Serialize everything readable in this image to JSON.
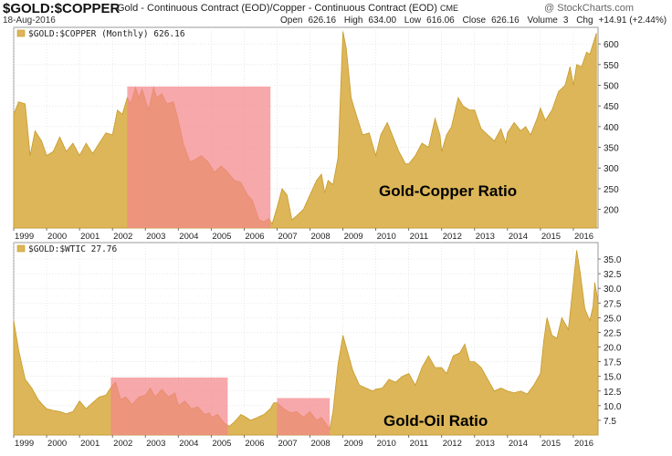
{
  "header": {
    "symbol": "$GOLD:$COPPER",
    "description": "Gold - Continuous Contract (EOD)/Copper - Continuous Contract (EOD)",
    "exchange": "CME",
    "watermark": "@ StockCharts.com",
    "date": "18-Aug-2016",
    "open_label": "Open",
    "open": "626.16",
    "high_label": "High",
    "high": "634.00",
    "low_label": "Low",
    "low": "616.06",
    "close_label": "Close",
    "close": "626.16",
    "volume_label": "Volume",
    "volume": "3",
    "chg_label": "Chg",
    "chg": "+14.91 (+2.44%)"
  },
  "colors": {
    "area_fill": "#dcb658",
    "area_line": "#c89a2a",
    "highlight_fill": "#f4868a",
    "grid": "#d9d9d9"
  },
  "chart_data": [
    {
      "type": "area",
      "legend": "$GOLD:$COPPER (Monthly) 626.16",
      "annotation": "Gold-Copper Ratio",
      "xlim": [
        1999.0,
        2016.75
      ],
      "ylim": [
        155,
        640
      ],
      "yticks": [
        200,
        250,
        300,
        350,
        400,
        450,
        500,
        550,
        600
      ],
      "xticks": [
        "1999",
        "2000",
        "2001",
        "2002",
        "2003",
        "2004",
        "2005",
        "2006",
        "2007",
        "2008",
        "2009",
        "2010",
        "2011",
        "2012",
        "2013",
        "2014",
        "2015",
        "2016"
      ],
      "highlight_ranges": [
        {
          "x0": 2002.45,
          "x1": 2006.8,
          "y_top": 497
        }
      ],
      "points": [
        [
          1999.0,
          430
        ],
        [
          1999.15,
          460
        ],
        [
          1999.35,
          455
        ],
        [
          1999.5,
          330
        ],
        [
          1999.65,
          390
        ],
        [
          1999.85,
          365
        ],
        [
          2000.0,
          330
        ],
        [
          2000.2,
          340
        ],
        [
          2000.4,
          375
        ],
        [
          2000.6,
          340
        ],
        [
          2000.8,
          360
        ],
        [
          2001.0,
          330
        ],
        [
          2001.2,
          360
        ],
        [
          2001.4,
          335
        ],
        [
          2001.6,
          360
        ],
        [
          2001.8,
          385
        ],
        [
          2002.0,
          380
        ],
        [
          2002.15,
          440
        ],
        [
          2002.3,
          430
        ],
        [
          2002.45,
          470
        ],
        [
          2002.55,
          455
        ],
        [
          2002.7,
          495
        ],
        [
          2002.8,
          470
        ],
        [
          2002.9,
          490
        ],
        [
          2003.0,
          465
        ],
        [
          2003.1,
          440
        ],
        [
          2003.25,
          495
        ],
        [
          2003.35,
          470
        ],
        [
          2003.5,
          480
        ],
        [
          2003.65,
          455
        ],
        [
          2003.85,
          460
        ],
        [
          2004.0,
          415
        ],
        [
          2004.15,
          360
        ],
        [
          2004.35,
          315
        ],
        [
          2004.5,
          320
        ],
        [
          2004.7,
          330
        ],
        [
          2004.9,
          315
        ],
        [
          2005.1,
          290
        ],
        [
          2005.3,
          305
        ],
        [
          2005.5,
          290
        ],
        [
          2005.7,
          270
        ],
        [
          2005.9,
          265
        ],
        [
          2006.1,
          235
        ],
        [
          2006.25,
          222
        ],
        [
          2006.45,
          175
        ],
        [
          2006.6,
          170
        ],
        [
          2006.75,
          178
        ],
        [
          2006.85,
          165
        ],
        [
          2007.0,
          205
        ],
        [
          2007.15,
          250
        ],
        [
          2007.3,
          235
        ],
        [
          2007.45,
          175
        ],
        [
          2007.6,
          185
        ],
        [
          2007.8,
          200
        ],
        [
          2008.0,
          235
        ],
        [
          2008.2,
          270
        ],
        [
          2008.35,
          285
        ],
        [
          2008.45,
          240
        ],
        [
          2008.55,
          270
        ],
        [
          2008.7,
          260
        ],
        [
          2008.85,
          325
        ],
        [
          2009.0,
          630
        ],
        [
          2009.1,
          590
        ],
        [
          2009.25,
          470
        ],
        [
          2009.4,
          430
        ],
        [
          2009.6,
          380
        ],
        [
          2009.8,
          385
        ],
        [
          2010.0,
          330
        ],
        [
          2010.15,
          380
        ],
        [
          2010.35,
          410
        ],
        [
          2010.5,
          380
        ],
        [
          2010.7,
          340
        ],
        [
          2010.9,
          310
        ],
        [
          2011.0,
          310
        ],
        [
          2011.2,
          330
        ],
        [
          2011.4,
          360
        ],
        [
          2011.6,
          350
        ],
        [
          2011.8,
          420
        ],
        [
          2011.95,
          380
        ],
        [
          2012.0,
          340
        ],
        [
          2012.15,
          380
        ],
        [
          2012.3,
          400
        ],
        [
          2012.5,
          470
        ],
        [
          2012.65,
          450
        ],
        [
          2012.85,
          440
        ],
        [
          2013.0,
          440
        ],
        [
          2013.2,
          395
        ],
        [
          2013.4,
          380
        ],
        [
          2013.6,
          365
        ],
        [
          2013.8,
          395
        ],
        [
          2013.95,
          360
        ],
        [
          2014.0,
          385
        ],
        [
          2014.2,
          410
        ],
        [
          2014.4,
          390
        ],
        [
          2014.55,
          400
        ],
        [
          2014.7,
          380
        ],
        [
          2014.9,
          420
        ],
        [
          2015.0,
          445
        ],
        [
          2015.15,
          415
        ],
        [
          2015.35,
          440
        ],
        [
          2015.55,
          485
        ],
        [
          2015.75,
          500
        ],
        [
          2015.9,
          545
        ],
        [
          2016.0,
          500
        ],
        [
          2016.1,
          550
        ],
        [
          2016.25,
          545
        ],
        [
          2016.4,
          580
        ],
        [
          2016.5,
          575
        ],
        [
          2016.6,
          600
        ],
        [
          2016.7,
          626
        ]
      ]
    },
    {
      "type": "area",
      "legend": "$GOLD:$WTIC 27.76",
      "annotation": "Gold-Oil Ratio",
      "xlim": [
        1999.0,
        2016.75
      ],
      "ylim": [
        5.0,
        37.8
      ],
      "yticks": [
        7.5,
        10.0,
        12.5,
        15.0,
        17.5,
        20.0,
        22.5,
        25.0,
        27.5,
        30.0,
        32.5,
        35.0
      ],
      "xticks": [
        "1999",
        "2000",
        "2001",
        "2002",
        "2003",
        "2004",
        "2005",
        "2006",
        "2007",
        "2008",
        "2009",
        "2010",
        "2011",
        "2012",
        "2013",
        "2014",
        "2015",
        "2016"
      ],
      "highlight_ranges": [
        {
          "x0": 2001.95,
          "x1": 2005.5,
          "y_top": 14.8
        },
        {
          "x0": 2007.0,
          "x1": 2008.6,
          "y_top": 11.3
        }
      ],
      "points": [
        [
          1999.0,
          24.5
        ],
        [
          1999.15,
          19.5
        ],
        [
          1999.35,
          14.5
        ],
        [
          1999.55,
          13.0
        ],
        [
          1999.75,
          11.0
        ],
        [
          1999.9,
          10.0
        ],
        [
          2000.0,
          9.5
        ],
        [
          2000.2,
          9.2
        ],
        [
          2000.4,
          9.0
        ],
        [
          2000.6,
          8.6
        ],
        [
          2000.8,
          9.0
        ],
        [
          2001.0,
          10.8
        ],
        [
          2001.2,
          9.5
        ],
        [
          2001.4,
          10.5
        ],
        [
          2001.6,
          11.5
        ],
        [
          2001.8,
          11.8
        ],
        [
          2002.0,
          13.5
        ],
        [
          2002.1,
          14.0
        ],
        [
          2002.25,
          11.0
        ],
        [
          2002.4,
          11.5
        ],
        [
          2002.6,
          10.2
        ],
        [
          2002.8,
          11.5
        ],
        [
          2003.0,
          11.8
        ],
        [
          2003.15,
          13.0
        ],
        [
          2003.3,
          11.5
        ],
        [
          2003.5,
          12.8
        ],
        [
          2003.7,
          11.5
        ],
        [
          2003.9,
          12.2
        ],
        [
          2004.0,
          10.0
        ],
        [
          2004.2,
          10.8
        ],
        [
          2004.4,
          9.5
        ],
        [
          2004.6,
          9.8
        ],
        [
          2004.8,
          8.5
        ],
        [
          2004.95,
          8.8
        ],
        [
          2005.0,
          8.0
        ],
        [
          2005.2,
          8.5
        ],
        [
          2005.4,
          7.0
        ],
        [
          2005.55,
          6.5
        ],
        [
          2005.7,
          7.2
        ],
        [
          2005.9,
          8.5
        ],
        [
          2006.0,
          8.2
        ],
        [
          2006.2,
          7.5
        ],
        [
          2006.4,
          8.0
        ],
        [
          2006.6,
          8.5
        ],
        [
          2006.8,
          9.5
        ],
        [
          2006.9,
          10.5
        ],
        [
          2007.0,
          10.5
        ],
        [
          2007.2,
          9.5
        ],
        [
          2007.4,
          8.8
        ],
        [
          2007.6,
          9.0
        ],
        [
          2007.8,
          8.0
        ],
        [
          2008.0,
          9.0
        ],
        [
          2008.2,
          7.5
        ],
        [
          2008.35,
          8.0
        ],
        [
          2008.5,
          6.8
        ],
        [
          2008.6,
          6.0
        ],
        [
          2008.7,
          9.0
        ],
        [
          2008.85,
          17.0
        ],
        [
          2009.0,
          22.0
        ],
        [
          2009.1,
          20.0
        ],
        [
          2009.3,
          16.0
        ],
        [
          2009.5,
          13.5
        ],
        [
          2009.7,
          13.0
        ],
        [
          2009.9,
          12.5
        ],
        [
          2010.0,
          12.8
        ],
        [
          2010.2,
          13.0
        ],
        [
          2010.4,
          14.5
        ],
        [
          2010.6,
          14.0
        ],
        [
          2010.8,
          15.0
        ],
        [
          2011.0,
          15.5
        ],
        [
          2011.2,
          13.5
        ],
        [
          2011.4,
          16.5
        ],
        [
          2011.6,
          18.5
        ],
        [
          2011.8,
          16.5
        ],
        [
          2012.0,
          16.5
        ],
        [
          2012.15,
          15.5
        ],
        [
          2012.35,
          18.5
        ],
        [
          2012.55,
          19.0
        ],
        [
          2012.7,
          20.5
        ],
        [
          2012.85,
          17.5
        ],
        [
          2013.0,
          17.5
        ],
        [
          2013.2,
          16.5
        ],
        [
          2013.4,
          14.5
        ],
        [
          2013.6,
          12.5
        ],
        [
          2013.8,
          13.0
        ],
        [
          2014.0,
          12.5
        ],
        [
          2014.2,
          12.2
        ],
        [
          2014.4,
          12.5
        ],
        [
          2014.6,
          12.0
        ],
        [
          2014.8,
          13.5
        ],
        [
          2015.0,
          15.5
        ],
        [
          2015.1,
          21.0
        ],
        [
          2015.2,
          25.0
        ],
        [
          2015.35,
          22.0
        ],
        [
          2015.5,
          21.5
        ],
        [
          2015.65,
          25.0
        ],
        [
          2015.85,
          23.0
        ],
        [
          2016.0,
          31.0
        ],
        [
          2016.1,
          36.5
        ],
        [
          2016.2,
          33.0
        ],
        [
          2016.35,
          26.5
        ],
        [
          2016.5,
          24.5
        ],
        [
          2016.6,
          27.0
        ],
        [
          2016.65,
          31.0
        ],
        [
          2016.75,
          27.76
        ]
      ]
    }
  ]
}
